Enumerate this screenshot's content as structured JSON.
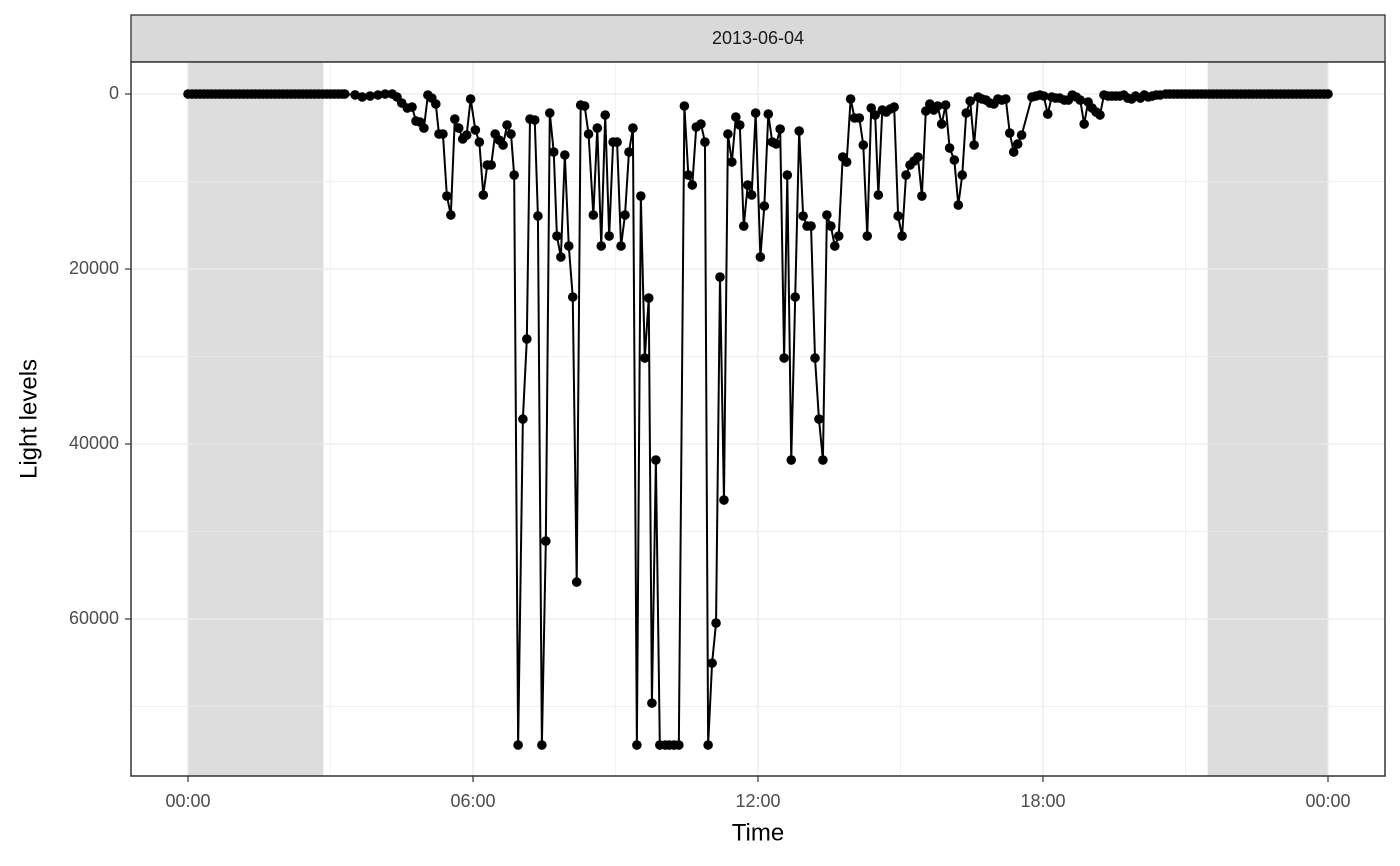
{
  "chart_data": {
    "type": "line",
    "strip": "2013-06-04",
    "x_label": "Time",
    "y_label": "Light levels",
    "color": "#000000",
    "markers": true,
    "grid": true,
    "y_reverse": true,
    "night_color": "#d9d9d9",
    "night": [
      [
        0,
        171
      ],
      [
        1288,
        1440
      ]
    ],
    "xlim": [
      -72,
      1512
    ],
    "xticks": [
      {
        "value": 0,
        "label": "00:00"
      },
      {
        "value": 360,
        "label": "06:00"
      },
      {
        "value": 720,
        "label": "12:00"
      },
      {
        "value": 1080,
        "label": "18:00"
      },
      {
        "value": 1440,
        "label": "00:00"
      }
    ],
    "xminor": [
      180,
      540,
      900,
      1260
    ],
    "ylim": [
      -3660,
      77940
    ],
    "yticks": [
      0,
      20000,
      40000,
      60000
    ],
    "yminor": [
      10000,
      30000,
      50000,
      70000
    ],
    "x": [
      0,
      5,
      10,
      15,
      20,
      25,
      30,
      35,
      40,
      45,
      50,
      55,
      60,
      65,
      70,
      75,
      80,
      85,
      90,
      95,
      100,
      105,
      110,
      115,
      120,
      125,
      130,
      135,
      140,
      145,
      150,
      155,
      160,
      165,
      170,
      175,
      180,
      185,
      190,
      195,
      198,
      211,
      220,
      230,
      240,
      249,
      258,
      264,
      270,
      277,
      283,
      288,
      293,
      298,
      303,
      308,
      313,
      317,
      322,
      327,
      332,
      337,
      342,
      347,
      352,
      357,
      363,
      368,
      373,
      378,
      383,
      388,
      393,
      398,
      403,
      408,
      412,
      417,
      423,
      428,
      432,
      438,
      442,
      447,
      452,
      457,
      462,
      466,
      471,
      476,
      481,
      486,
      491,
      496,
      501,
      506,
      512,
      517,
      522,
      527,
      532,
      537,
      542,
      547,
      552,
      557,
      562,
      567,
      572,
      577,
      582,
      586,
      591,
      596,
      603,
      608,
      614,
      620,
      627,
      632,
      637,
      642,
      648,
      653,
      657,
      662,
      667,
      672,
      677,
      682,
      687,
      692,
      697,
      702,
      707,
      712,
      717,
      723,
      728,
      733,
      738,
      743,
      748,
      753,
      757,
      762,
      767,
      772,
      777,
      782,
      787,
      792,
      797,
      802,
      807,
      812,
      817,
      822,
      827,
      832,
      837,
      842,
      848,
      853,
      858,
      863,
      868,
      872,
      877,
      882,
      887,
      892,
      897,
      902,
      907,
      912,
      917,
      922,
      927,
      932,
      937,
      942,
      947,
      952,
      957,
      962,
      968,
      973,
      978,
      983,
      988,
      993,
      998,
      1003,
      1008,
      1013,
      1018,
      1023,
      1028,
      1033,
      1038,
      1043,
      1048,
      1053,
      1066,
      1071,
      1076,
      1081,
      1086,
      1091,
      1096,
      1101,
      1107,
      1112,
      1117,
      1122,
      1127,
      1132,
      1137,
      1142,
      1147,
      1152,
      1157,
      1162,
      1167,
      1172,
      1177,
      1182,
      1187,
      1192,
      1197,
      1203,
      1208,
      1213,
      1218,
      1223,
      1228,
      1235,
      1240,
      1245,
      1250,
      1255,
      1260,
      1265,
      1270,
      1275,
      1280,
      1285,
      1290,
      1295,
      1300,
      1305,
      1310,
      1315,
      1320,
      1325,
      1330,
      1335,
      1340,
      1345,
      1350,
      1355,
      1360,
      1365,
      1370,
      1375,
      1380,
      1385,
      1390,
      1395,
      1400,
      1405,
      1410,
      1415,
      1420,
      1425,
      1430,
      1435,
      1440
    ],
    "values": [
      0,
      0,
      0,
      0,
      0,
      0,
      0,
      0,
      0,
      0,
      0,
      0,
      0,
      0,
      0,
      0,
      0,
      0,
      0,
      0,
      0,
      0,
      0,
      0,
      0,
      0,
      0,
      0,
      0,
      0,
      0,
      0,
      0,
      0,
      0,
      0,
      0,
      0,
      0,
      0,
      0,
      100,
      340,
      230,
      110,
      0,
      0,
      340,
      1030,
      1600,
      1490,
      3090,
      3200,
      3890,
      110,
      460,
      1140,
      4570,
      4570,
      11660,
      13830,
      2860,
      3890,
      5140,
      4690,
      570,
      4110,
      5490,
      11540,
      8110,
      8110,
      4570,
      5260,
      5830,
      3540,
      4570,
      9260,
      74400,
      37150,
      28000,
      2860,
      2970,
      13940,
      74400,
      51090,
      2170,
      6630,
      16230,
      18630,
      6970,
      17370,
      23200,
      55780,
      1260,
      1370,
      4570,
      13830,
      3890,
      17370,
      2400,
      16230,
      5490,
      5490,
      17370,
      13830,
      6630,
      3890,
      74400,
      11660,
      30170,
      23320,
      69610,
      41830,
      74400,
      74400,
      74400,
      74400,
      74400,
      1370,
      9260,
      10400,
      3770,
      3430,
      5490,
      74400,
      65040,
      60460,
      20920,
      46400,
      4570,
      7770,
      2630,
      3540,
      15090,
      10400,
      11540,
      2170,
      18630,
      12800,
      2290,
      5490,
      5710,
      4000,
      30170,
      9260,
      41830,
      23200,
      4230,
      13940,
      15090,
      15090,
      30170,
      37150,
      41830,
      13830,
      15090,
      17370,
      16230,
      7200,
      7770,
      570,
      2740,
      2740,
      5830,
      16230,
      1600,
      2400,
      11540,
      1830,
      2060,
      1710,
      1490,
      13940,
      16230,
      9260,
      8110,
      7660,
      7200,
      11660,
      1940,
      1140,
      1830,
      1370,
      3430,
      1260,
      6170,
      7540,
      12690,
      9260,
      2170,
      800,
      5830,
      340,
      570,
      690,
      1030,
      1140,
      570,
      690,
      570,
      4460,
      6630,
      5710,
      4690,
      340,
      230,
      110,
      230,
      2290,
      340,
      460,
      460,
      690,
      690,
      110,
      340,
      690,
      3430,
      910,
      1600,
      2060,
      2400,
      110,
      230,
      230,
      230,
      230,
      110,
      460,
      570,
      230,
      460,
      110,
      340,
      230,
      110,
      110,
      0,
      0,
      0,
      0,
      0,
      0,
      0,
      0,
      0,
      0,
      0,
      0,
      0,
      0,
      0,
      0,
      0,
      0,
      0,
      0,
      0,
      0,
      0,
      0,
      0,
      0,
      0,
      0,
      0,
      0,
      0,
      0,
      0,
      0,
      0,
      0,
      0,
      0,
      0,
      0,
      0,
      0
    ]
  }
}
